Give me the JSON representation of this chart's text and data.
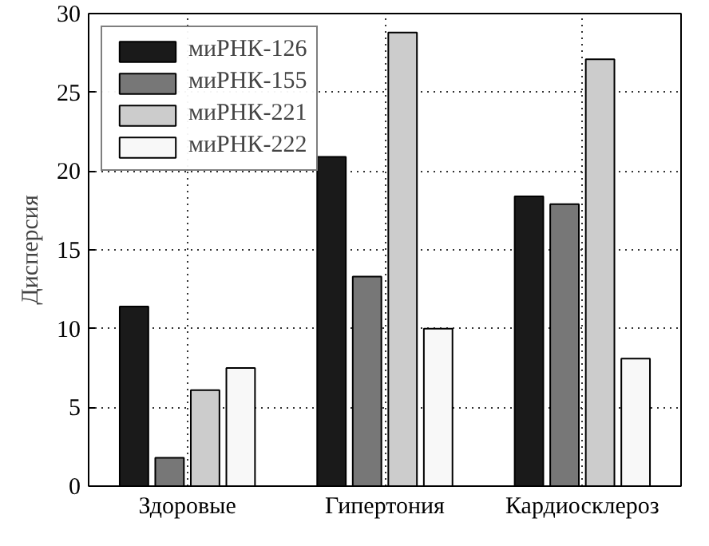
{
  "chart_data": {
    "type": "bar",
    "ylabel": "Дисперсия",
    "categories": [
      "Здоровые",
      "Гипертония",
      "Кардиосклероз"
    ],
    "series": [
      {
        "name": "миРНК-126",
        "color": "#1a1a1a",
        "values": [
          11.4,
          20.9,
          18.4
        ]
      },
      {
        "name": "миРНК-155",
        "color": "#777777",
        "values": [
          1.8,
          13.3,
          17.9
        ]
      },
      {
        "name": "миРНК-221",
        "color": "#cccccc",
        "values": [
          6.1,
          28.8,
          27.1
        ]
      },
      {
        "name": "миРНК-222",
        "color": "#f8f8f8",
        "values": [
          7.5,
          10.0,
          8.1
        ]
      }
    ],
    "ylim": [
      0,
      30
    ],
    "yticks": [
      0,
      5,
      10,
      15,
      20,
      25,
      30
    ],
    "grid": true,
    "legend": "top left"
  }
}
